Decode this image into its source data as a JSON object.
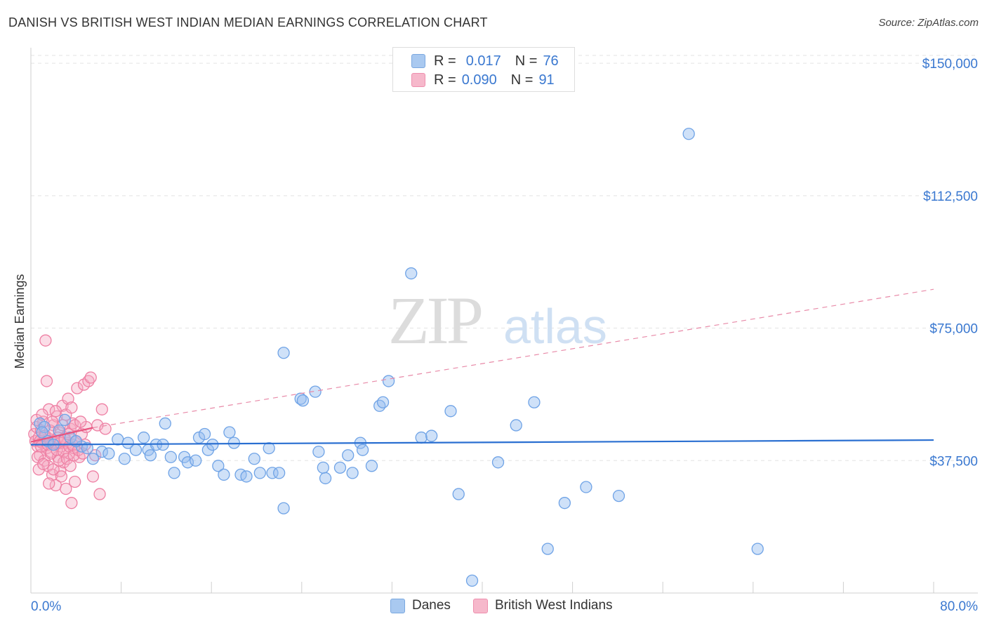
{
  "title": "DANISH VS BRITISH WEST INDIAN MEDIAN EARNINGS CORRELATION CHART",
  "source": "Source: ZipAtlas.com",
  "watermark": {
    "zip": "ZIP",
    "atlas": "atlas"
  },
  "legend": {
    "rows": [
      {
        "r_label": "R =",
        "r_value": "0.017",
        "n_label": "N =",
        "n_value": "76",
        "color": "#a9c9f0",
        "stroke": "#7aa8e0"
      },
      {
        "r_label": "R =",
        "r_value": "0.090",
        "n_label": "N =",
        "n_value": "91",
        "color": "#f6b8cb",
        "stroke": "#ee8fae"
      }
    ]
  },
  "bottom_legend": [
    {
      "label": "Danes",
      "color": "#a9c9f0",
      "stroke": "#7aa8e0"
    },
    {
      "label": "British West Indians",
      "color": "#f6b8cb",
      "stroke": "#ee8fae"
    }
  ],
  "chart_data": {
    "type": "scatter",
    "title": "DANISH VS BRITISH WEST INDIAN MEDIAN EARNINGS CORRELATION CHART",
    "xlabel": "",
    "ylabel": "Median Earnings",
    "xlim": [
      0,
      80
    ],
    "ylim": [
      0,
      153000
    ],
    "x_tick_labels": {
      "left": "0.0%",
      "right": "80.0%"
    },
    "x_minor_ticks": [
      8,
      16,
      24,
      32,
      40,
      48,
      56,
      64,
      72,
      80
    ],
    "y_ticks": [
      {
        "value": 37500,
        "label": "$37,500"
      },
      {
        "value": 75000,
        "label": "$75,000"
      },
      {
        "value": 112500,
        "label": "$112,500"
      },
      {
        "value": 150000,
        "label": "$150,000"
      }
    ],
    "grid": true,
    "series": [
      {
        "name": "Danes",
        "color": "#6fa3e6",
        "fill": "rgba(148,189,240,0.45)",
        "trend": {
          "x0": 0,
          "y0": 42000,
          "x1": 80,
          "y1": 43300,
          "color": "#2a6fd1",
          "style": "solid"
        },
        "points": [
          [
            0.8,
            48000
          ],
          [
            1.2,
            47000
          ],
          [
            2.5,
            46000
          ],
          [
            3.5,
            44000
          ],
          [
            4.5,
            41500
          ],
          [
            5.5,
            38000
          ],
          [
            6.3,
            40000
          ],
          [
            6.9,
            39500
          ],
          [
            7.7,
            43500
          ],
          [
            8.6,
            42500
          ],
          [
            8.3,
            38000
          ],
          [
            9.3,
            40500
          ],
          [
            10.0,
            44000
          ],
          [
            10.4,
            40500
          ],
          [
            10.6,
            39000
          ],
          [
            11.1,
            42000
          ],
          [
            11.7,
            42000
          ],
          [
            11.9,
            48000
          ],
          [
            12.4,
            38500
          ],
          [
            12.7,
            34000
          ],
          [
            13.6,
            38500
          ],
          [
            13.9,
            37000
          ],
          [
            14.6,
            37500
          ],
          [
            14.9,
            44000
          ],
          [
            15.4,
            45000
          ],
          [
            15.7,
            40500
          ],
          [
            16.1,
            42000
          ],
          [
            16.6,
            36000
          ],
          [
            17.1,
            33500
          ],
          [
            17.6,
            45500
          ],
          [
            18.0,
            42500
          ],
          [
            18.6,
            33500
          ],
          [
            19.1,
            33000
          ],
          [
            19.8,
            38000
          ],
          [
            20.3,
            34000
          ],
          [
            21.1,
            41000
          ],
          [
            21.4,
            34000
          ],
          [
            22.0,
            34000
          ],
          [
            22.4,
            68000
          ],
          [
            22.4,
            24000
          ],
          [
            23.9,
            55000
          ],
          [
            24.1,
            54500
          ],
          [
            25.2,
            57000
          ],
          [
            25.5,
            40000
          ],
          [
            25.9,
            35500
          ],
          [
            26.1,
            32500
          ],
          [
            27.4,
            35500
          ],
          [
            28.1,
            39000
          ],
          [
            28.5,
            34000
          ],
          [
            29.2,
            42500
          ],
          [
            29.4,
            40500
          ],
          [
            30.2,
            36000
          ],
          [
            30.9,
            53000
          ],
          [
            31.2,
            54000
          ],
          [
            31.7,
            60000
          ],
          [
            33.7,
            90500
          ],
          [
            34.6,
            44000
          ],
          [
            35.5,
            44500
          ],
          [
            37.2,
            51500
          ],
          [
            37.9,
            28000
          ],
          [
            39.1,
            3500
          ],
          [
            41.4,
            37000
          ],
          [
            43.0,
            47500
          ],
          [
            44.6,
            54000
          ],
          [
            45.8,
            12500
          ],
          [
            47.3,
            25500
          ],
          [
            49.2,
            30000
          ],
          [
            52.1,
            27500
          ],
          [
            58.3,
            130000
          ],
          [
            64.4,
            12500
          ],
          [
            1.0,
            45500
          ],
          [
            1.5,
            43000
          ],
          [
            3.0,
            49000
          ],
          [
            2.0,
            42000
          ],
          [
            4.0,
            43000
          ],
          [
            5.0,
            41000
          ]
        ]
      },
      {
        "name": "British West Indians",
        "color": "#ee7fa3",
        "fill": "rgba(246,170,196,0.40)",
        "trend": {
          "x0": 0,
          "y0": 42800,
          "x1": 5.5,
          "y1": 46800,
          "color": "#e8547f",
          "style": "solid",
          "ext_x1": 80,
          "ext_y1": 86000,
          "ext_style": "dashed"
        },
        "points": [
          [
            0.3,
            45000
          ],
          [
            0.4,
            43000
          ],
          [
            0.5,
            47000
          ],
          [
            0.6,
            41500
          ],
          [
            0.7,
            44000
          ],
          [
            0.8,
            39000
          ],
          [
            0.9,
            46000
          ],
          [
            1.0,
            42500
          ],
          [
            1.1,
            48500
          ],
          [
            1.2,
            37500
          ],
          [
            1.3,
            44500
          ],
          [
            1.4,
            41000
          ],
          [
            1.5,
            36000
          ],
          [
            1.6,
            52000
          ],
          [
            1.7,
            43500
          ],
          [
            1.8,
            40000
          ],
          [
            1.9,
            33500
          ],
          [
            2.0,
            47500
          ],
          [
            2.1,
            42000
          ],
          [
            2.2,
            30500
          ],
          [
            2.3,
            50000
          ],
          [
            2.4,
            38500
          ],
          [
            2.5,
            45500
          ],
          [
            2.6,
            34500
          ],
          [
            2.7,
            41500
          ],
          [
            2.8,
            53000
          ],
          [
            2.9,
            37000
          ],
          [
            3.0,
            44000
          ],
          [
            3.1,
            29500
          ],
          [
            3.2,
            42500
          ],
          [
            3.3,
            55000
          ],
          [
            3.4,
            39500
          ],
          [
            3.5,
            46500
          ],
          [
            3.6,
            25500
          ],
          [
            3.7,
            48000
          ],
          [
            3.8,
            41000
          ],
          [
            3.9,
            31500
          ],
          [
            4.0,
            43000
          ],
          [
            4.1,
            58000
          ],
          [
            4.3,
            38500
          ],
          [
            4.5,
            45000
          ],
          [
            4.7,
            59000
          ],
          [
            4.9,
            47000
          ],
          [
            5.1,
            60000
          ],
          [
            5.3,
            61000
          ],
          [
            5.5,
            33000
          ],
          [
            5.7,
            39000
          ],
          [
            5.9,
            47500
          ],
          [
            6.1,
            28000
          ],
          [
            6.3,
            52000
          ],
          [
            6.6,
            46500
          ],
          [
            1.3,
            71500
          ],
          [
            1.4,
            60000
          ],
          [
            0.5,
            49000
          ],
          [
            0.6,
            38500
          ],
          [
            0.7,
            35000
          ],
          [
            0.8,
            43000
          ],
          [
            0.9,
            41500
          ],
          [
            1.0,
            50500
          ],
          [
            1.1,
            36500
          ],
          [
            1.2,
            44500
          ],
          [
            1.5,
            42000
          ],
          [
            1.6,
            31000
          ],
          [
            1.7,
            46000
          ],
          [
            1.8,
            39500
          ],
          [
            1.9,
            48500
          ],
          [
            2.0,
            35000
          ],
          [
            2.1,
            42500
          ],
          [
            2.2,
            51500
          ],
          [
            2.3,
            40500
          ],
          [
            2.4,
            44000
          ],
          [
            2.5,
            37500
          ],
          [
            2.6,
            42500
          ],
          [
            2.7,
            33000
          ],
          [
            2.8,
            47500
          ],
          [
            2.9,
            40000
          ],
          [
            3.0,
            43500
          ],
          [
            3.1,
            50500
          ],
          [
            3.2,
            38000
          ],
          [
            3.3,
            45000
          ],
          [
            3.4,
            41500
          ],
          [
            3.5,
            36000
          ],
          [
            3.6,
            52500
          ],
          [
            3.7,
            42000
          ],
          [
            3.8,
            39000
          ],
          [
            3.9,
            47500
          ],
          [
            4.0,
            43000
          ],
          [
            4.2,
            40500
          ],
          [
            4.4,
            48500
          ],
          [
            4.6,
            39500
          ],
          [
            4.8,
            42000
          ]
        ]
      }
    ]
  }
}
